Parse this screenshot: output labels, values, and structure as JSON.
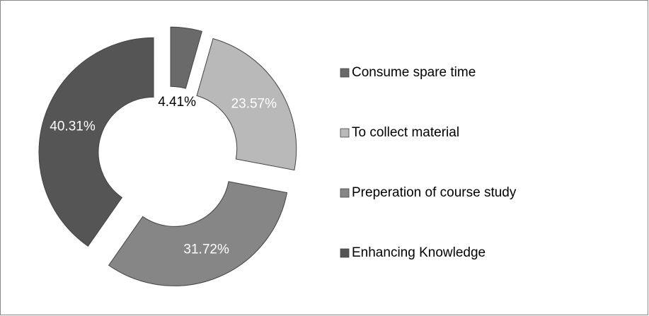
{
  "chart_data": {
    "type": "donut",
    "categories": [
      "Consume spare time",
      "To collect material",
      "Preperation of course study",
      "Enhancing Knowledge"
    ],
    "values": [
      4.41,
      23.57,
      31.72,
      40.31
    ],
    "value_labels": [
      "4.41%",
      "23.57%",
      "31.72%",
      "40.31%"
    ],
    "colors": [
      "#6a6a6a",
      "#b9b9b9",
      "#868686",
      "#555555"
    ],
    "legend": "right"
  }
}
